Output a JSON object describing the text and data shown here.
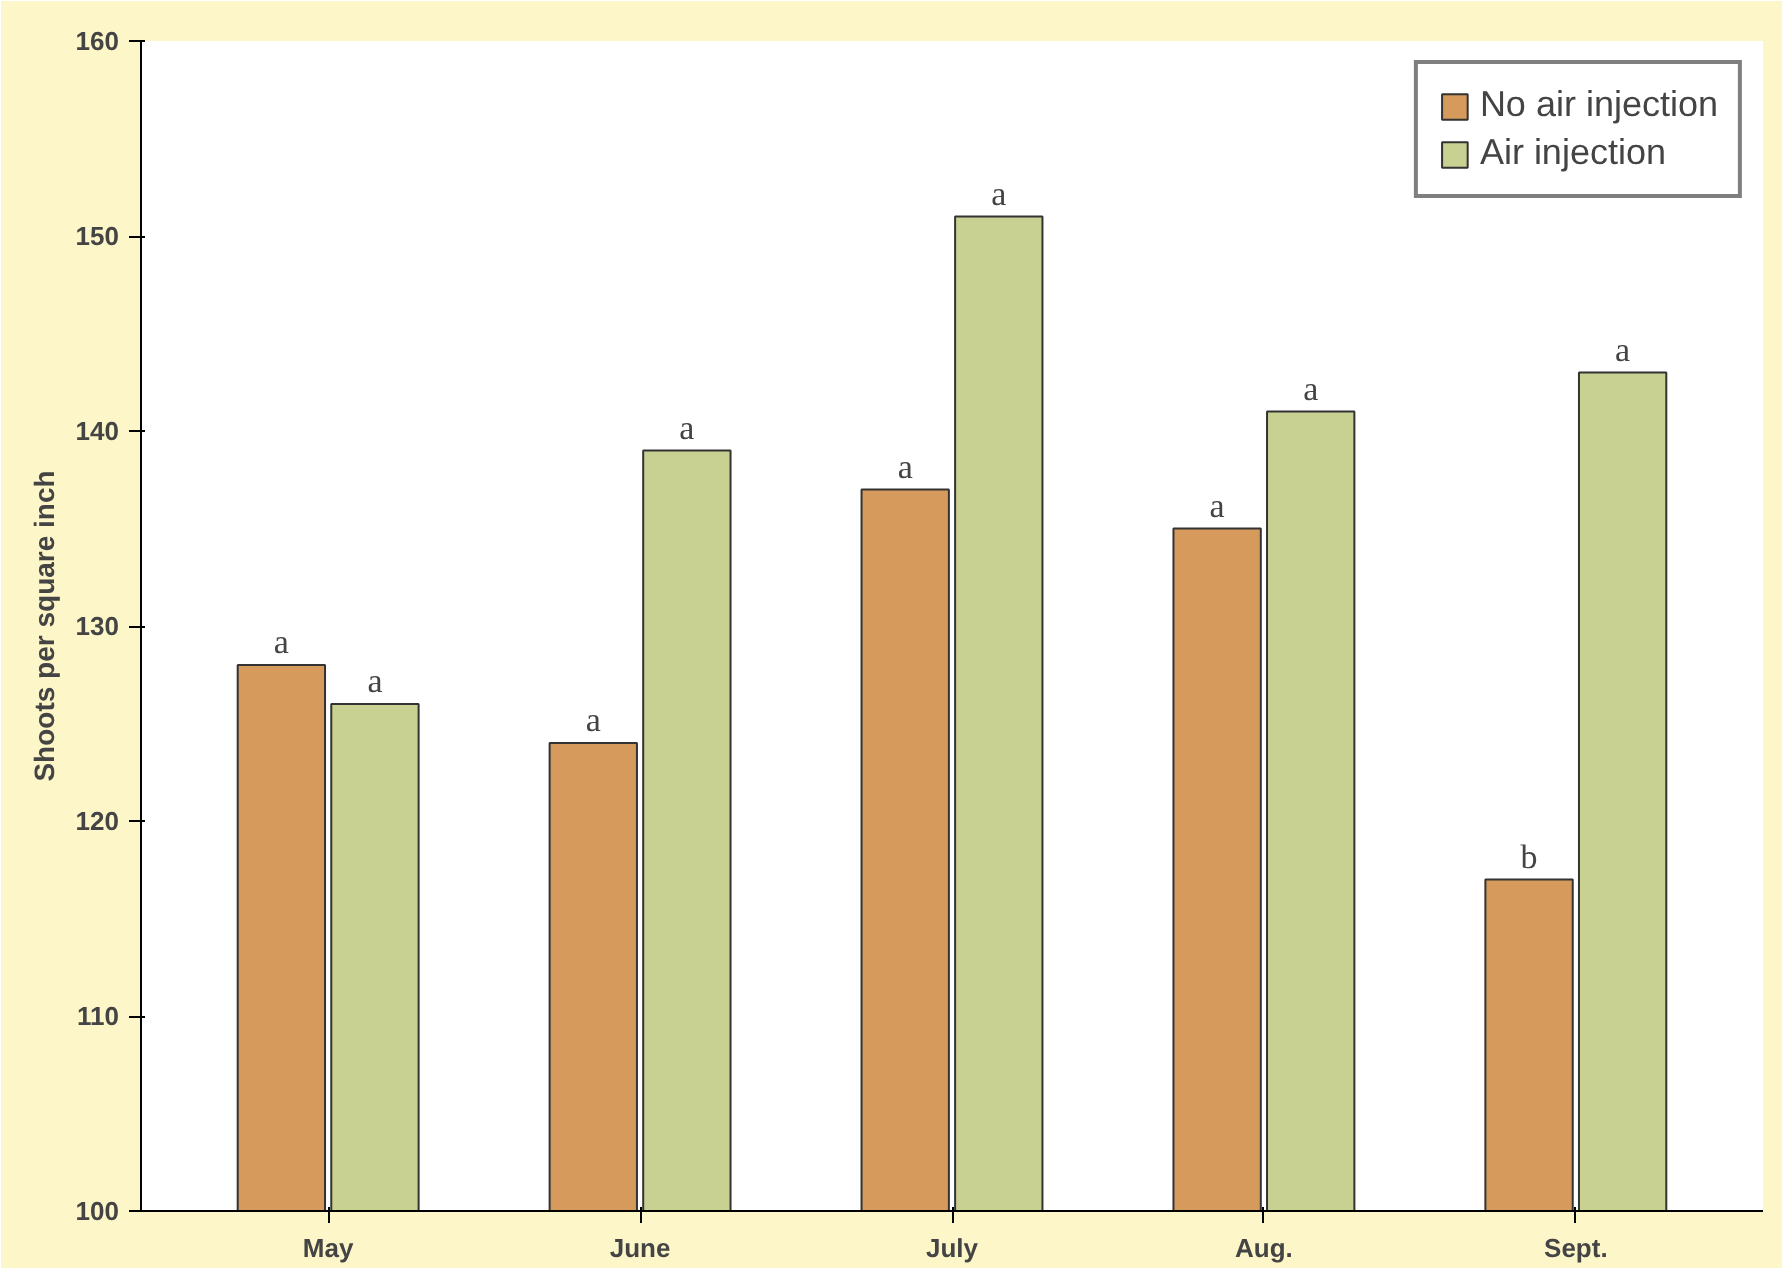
{
  "chart_data": {
    "type": "bar",
    "ylabel": "Shoots per square inch",
    "categories": [
      "May",
      "June",
      "July",
      "Aug.",
      "Sept."
    ],
    "series": [
      {
        "name": "No air injection",
        "color": "#d69a5c",
        "values": [
          128,
          124,
          137,
          135,
          117
        ],
        "value_labels": [
          "a",
          "a",
          "a",
          "a",
          "b"
        ]
      },
      {
        "name": "Air injection",
        "color": "#c8d092",
        "values": [
          126,
          139,
          151,
          141,
          143
        ],
        "value_labels": [
          "a",
          "a",
          "a",
          "a",
          "a"
        ]
      }
    ],
    "ylim": [
      100,
      160
    ],
    "yticks": [
      100,
      110,
      120,
      130,
      140,
      150,
      160
    ],
    "grid": false,
    "legend": "top right"
  }
}
